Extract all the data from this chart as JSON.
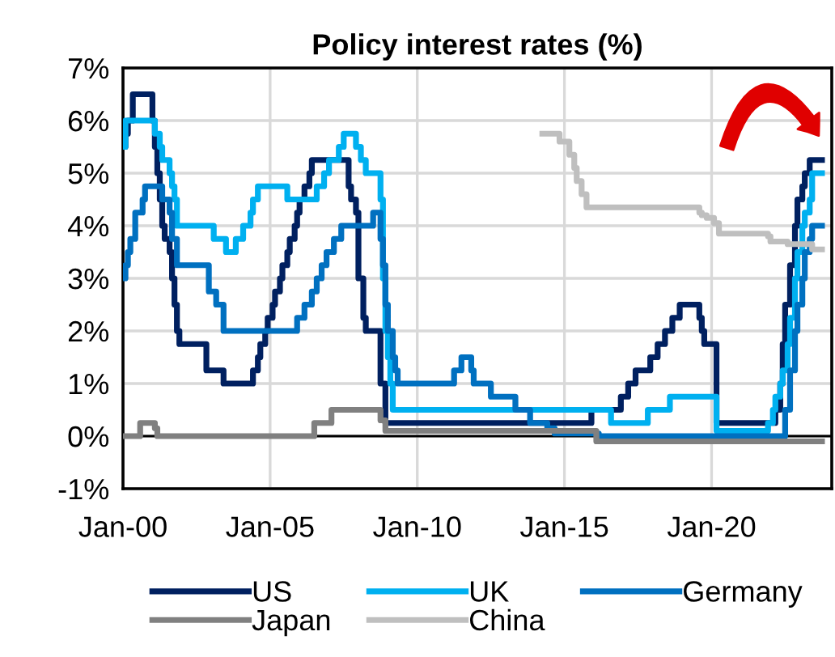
{
  "chart_data": {
    "type": "step",
    "title": "Policy interest rates (%)",
    "xlim": [
      "2000-01",
      "2024-02"
    ],
    "xticks": [
      {
        "value": "2000-01",
        "label": "Jan-00"
      },
      {
        "value": "2005-01",
        "label": "Jan-05"
      },
      {
        "value": "2010-01",
        "label": "Jan-10"
      },
      {
        "value": "2015-01",
        "label": "Jan-15"
      },
      {
        "value": "2020-01",
        "label": "Jan-20"
      }
    ],
    "ylim": [
      -1,
      7
    ],
    "yticks": [
      {
        "value": -1,
        "label": "-1%"
      },
      {
        "value": 0,
        "label": "0%"
      },
      {
        "value": 1,
        "label": "1%"
      },
      {
        "value": 2,
        "label": "2%"
      },
      {
        "value": 3,
        "label": "3%"
      },
      {
        "value": 4,
        "label": "4%"
      },
      {
        "value": 5,
        "label": "5%"
      },
      {
        "value": 6,
        "label": "6%"
      },
      {
        "value": 7,
        "label": "7%"
      }
    ],
    "grid": true,
    "legend": "bottom",
    "line_style": "solid",
    "marker": "none",
    "series": [
      {
        "name": "US",
        "color": "#002060",
        "x": [
          "2000-01",
          "2000-02",
          "2000-03",
          "2000-05",
          "2001-01",
          "2001-02",
          "2001-03",
          "2001-04",
          "2001-05",
          "2001-06",
          "2001-08",
          "2001-09",
          "2001-10",
          "2001-11",
          "2001-12",
          "2002-11",
          "2003-06",
          "2004-06",
          "2004-08",
          "2004-09",
          "2004-11",
          "2004-12",
          "2005-02",
          "2005-03",
          "2005-05",
          "2005-06",
          "2005-08",
          "2005-09",
          "2005-11",
          "2005-12",
          "2006-01",
          "2006-03",
          "2006-05",
          "2006-06",
          "2007-09",
          "2007-10",
          "2007-12",
          "2008-01",
          "2008-03",
          "2008-04",
          "2008-10",
          "2008-12",
          "2015-12",
          "2016-12",
          "2017-03",
          "2017-06",
          "2017-12",
          "2018-03",
          "2018-06",
          "2018-09",
          "2018-12",
          "2019-08",
          "2019-09",
          "2019-10",
          "2020-03",
          "2022-03",
          "2022-05",
          "2022-06",
          "2022-07",
          "2022-09",
          "2022-11",
          "2022-12",
          "2023-02",
          "2023-03",
          "2023-05",
          "2023-07",
          "2023-10"
        ],
        "values": [
          5.5,
          5.75,
          6.0,
          6.5,
          6.0,
          5.5,
          5.0,
          4.5,
          4.0,
          3.75,
          3.5,
          3.0,
          2.5,
          2.0,
          1.75,
          1.25,
          1.0,
          1.25,
          1.5,
          1.75,
          2.0,
          2.25,
          2.5,
          2.75,
          3.0,
          3.25,
          3.5,
          3.75,
          4.0,
          4.25,
          4.5,
          4.75,
          5.0,
          5.25,
          4.75,
          4.5,
          4.25,
          3.0,
          2.25,
          2.0,
          1.0,
          0.25,
          0.5,
          0.75,
          1.0,
          1.25,
          1.5,
          1.75,
          2.0,
          2.25,
          2.5,
          2.25,
          2.0,
          1.75,
          0.25,
          0.5,
          1.0,
          1.75,
          2.5,
          3.25,
          4.0,
          4.5,
          4.75,
          5.0,
          5.25,
          5.25,
          5.25
        ]
      },
      {
        "name": "UK",
        "color": "#00b0f0",
        "x": [
          "2000-01",
          "2000-02",
          "2001-02",
          "2001-04",
          "2001-05",
          "2001-08",
          "2001-09",
          "2001-10",
          "2001-11",
          "2003-02",
          "2003-07",
          "2003-11",
          "2004-02",
          "2004-05",
          "2004-06",
          "2004-08",
          "2005-08",
          "2006-08",
          "2006-11",
          "2007-01",
          "2007-05",
          "2007-07",
          "2007-12",
          "2008-02",
          "2008-04",
          "2008-10",
          "2008-11",
          "2008-12",
          "2009-01",
          "2009-02",
          "2009-03",
          "2016-08",
          "2017-11",
          "2018-08",
          "2020-03",
          "2021-12",
          "2022-02",
          "2022-03",
          "2022-05",
          "2022-06",
          "2022-08",
          "2022-09",
          "2022-11",
          "2022-12",
          "2023-02",
          "2023-03",
          "2023-05",
          "2023-06",
          "2023-08",
          "2023-10"
        ],
        "values": [
          5.5,
          6.0,
          5.75,
          5.5,
          5.25,
          5.0,
          4.75,
          4.5,
          4.0,
          3.75,
          3.5,
          3.75,
          4.0,
          4.25,
          4.5,
          4.75,
          4.5,
          4.75,
          5.0,
          5.25,
          5.5,
          5.75,
          5.5,
          5.25,
          5.0,
          4.5,
          3.0,
          2.0,
          1.5,
          1.0,
          0.5,
          0.25,
          0.5,
          0.75,
          0.1,
          0.25,
          0.5,
          0.75,
          1.0,
          1.25,
          1.75,
          2.25,
          3.0,
          3.5,
          4.0,
          4.25,
          4.5,
          5.0,
          5.0,
          5.0
        ]
      },
      {
        "name": "Germany",
        "color": "#0070c0",
        "x": [
          "2000-01",
          "2000-02",
          "2000-03",
          "2000-04",
          "2000-06",
          "2000-09",
          "2000-10",
          "2001-05",
          "2001-08",
          "2001-09",
          "2001-11",
          "2002-12",
          "2003-03",
          "2003-06",
          "2005-12",
          "2006-03",
          "2006-06",
          "2006-08",
          "2006-10",
          "2006-12",
          "2007-03",
          "2007-06",
          "2008-07",
          "2008-10",
          "2008-11",
          "2008-12",
          "2009-01",
          "2009-03",
          "2009-04",
          "2009-05",
          "2011-04",
          "2011-07",
          "2011-11",
          "2011-12",
          "2012-07",
          "2013-05",
          "2013-11",
          "2014-06",
          "2014-09",
          "2016-03",
          "2022-07",
          "2022-09",
          "2022-11",
          "2022-12",
          "2023-02",
          "2023-03",
          "2023-05",
          "2023-06",
          "2023-08",
          "2023-10"
        ],
        "values": [
          3.0,
          3.25,
          3.5,
          3.75,
          4.25,
          4.5,
          4.75,
          4.5,
          4.25,
          3.75,
          3.25,
          2.75,
          2.5,
          2.0,
          2.25,
          2.5,
          2.75,
          3.0,
          3.25,
          3.5,
          3.75,
          4.0,
          4.25,
          3.75,
          3.25,
          2.5,
          2.0,
          1.5,
          1.25,
          1.0,
          1.25,
          1.5,
          1.25,
          1.0,
          0.75,
          0.5,
          0.25,
          0.15,
          0.05,
          0.0,
          0.5,
          1.25,
          2.0,
          2.5,
          3.0,
          3.5,
          3.75,
          4.0,
          4.0,
          4.0
        ]
      },
      {
        "name": "Japan",
        "color": "#808080",
        "x": [
          "2000-01",
          "2000-08",
          "2001-02",
          "2001-03",
          "2006-07",
          "2007-02",
          "2008-10",
          "2008-12",
          "2016-02",
          "2023-10"
        ],
        "values": [
          0.0,
          0.25,
          0.15,
          0.0,
          0.25,
          0.5,
          0.3,
          0.1,
          -0.1,
          -0.1
        ]
      },
      {
        "name": "China",
        "color": "#bfbfbf",
        "x": [
          "2014-04",
          "2014-11",
          "2015-03",
          "2015-05",
          "2015-06",
          "2015-08",
          "2015-10",
          "2019-08",
          "2019-09",
          "2019-11",
          "2020-02",
          "2020-04",
          "2021-12",
          "2022-01",
          "2022-08",
          "2023-06",
          "2023-10"
        ],
        "values": [
          5.75,
          5.6,
          5.35,
          5.1,
          4.85,
          4.6,
          4.35,
          4.25,
          4.2,
          4.15,
          4.05,
          3.85,
          3.8,
          3.7,
          3.65,
          3.55,
          3.55
        ]
      }
    ]
  }
}
